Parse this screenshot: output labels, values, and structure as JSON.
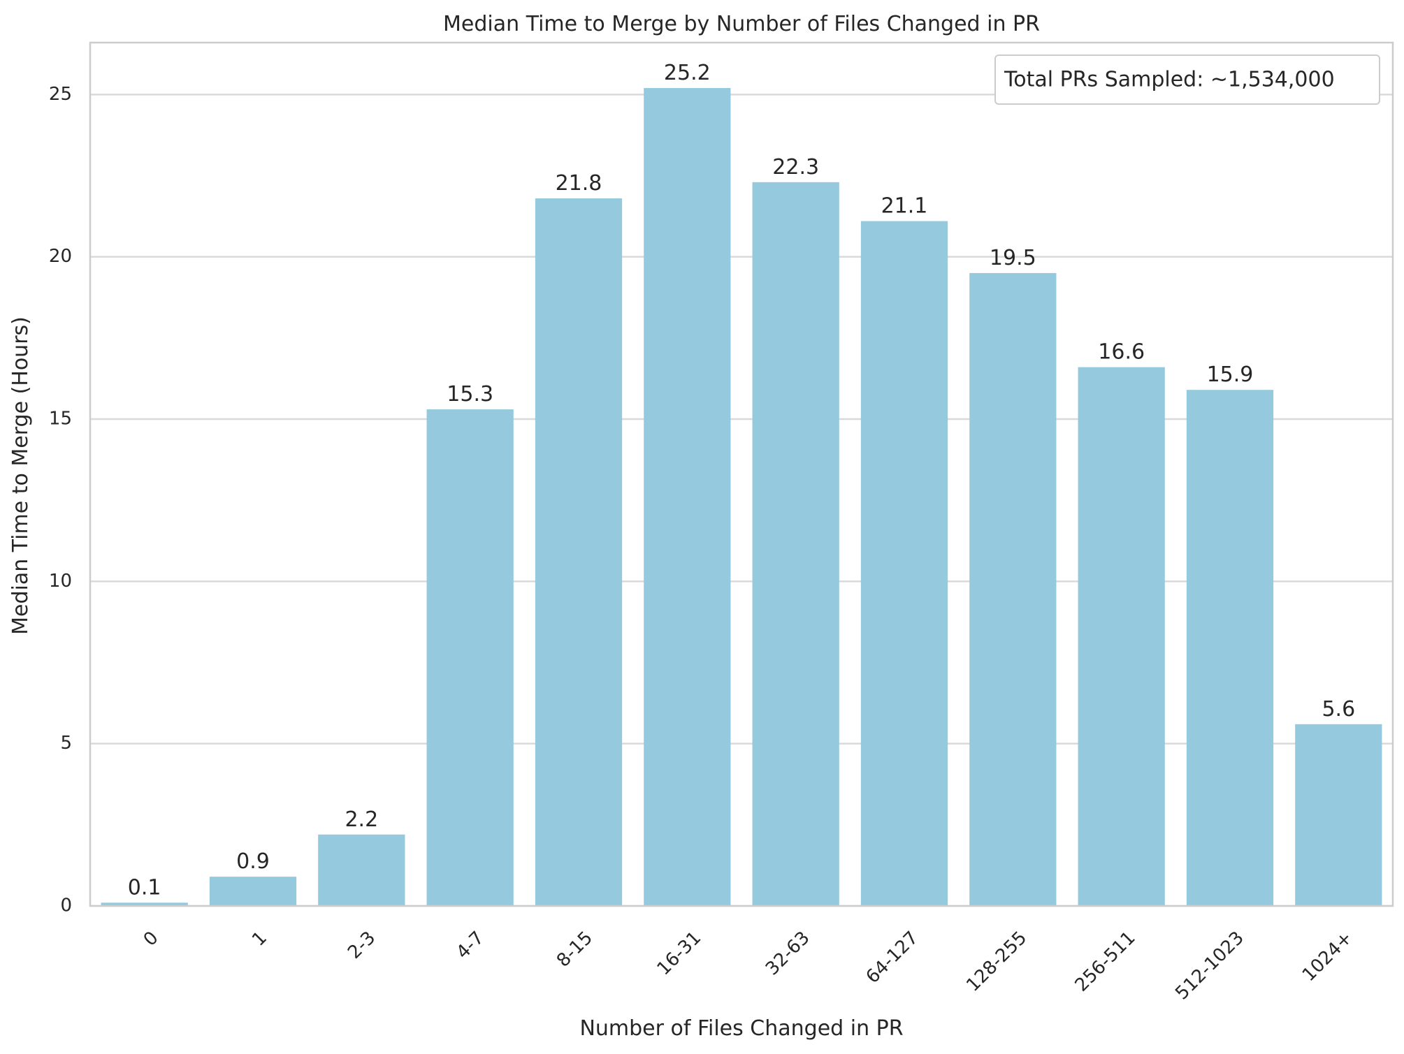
{
  "chart_data": {
    "type": "bar",
    "title": "Median Time to Merge by Number of Files Changed in PR",
    "xlabel": "Number of Files Changed in PR",
    "ylabel": "Median Time to Merge (Hours)",
    "categories": [
      "0",
      "1",
      "2-3",
      "4-7",
      "8-15",
      "16-31",
      "32-63",
      "64-127",
      "128-255",
      "256-511",
      "512-1023",
      "1024+"
    ],
    "values": [
      0.1,
      0.9,
      2.2,
      15.3,
      21.8,
      25.2,
      22.3,
      21.1,
      19.5,
      16.6,
      15.9,
      5.6
    ],
    "value_labels": [
      "0.1",
      "0.9",
      "2.2",
      "15.3",
      "21.8",
      "25.2",
      "22.3",
      "21.1",
      "19.5",
      "16.6",
      "15.9",
      "5.6"
    ],
    "ylim": [
      0,
      26.6
    ],
    "yticks": [
      0,
      5,
      10,
      15,
      20,
      25
    ],
    "ytick_labels": [
      "0",
      "5",
      "10",
      "15",
      "20",
      "25"
    ],
    "grid": "horizontal",
    "legend": {
      "text": "Total PRs Sampled: ~1,534,000",
      "placement": "top-right"
    },
    "colors": {
      "bar": "#95c9de",
      "grid": "#d9d9d9",
      "spine": "#cccccc",
      "text": "#262626"
    }
  }
}
